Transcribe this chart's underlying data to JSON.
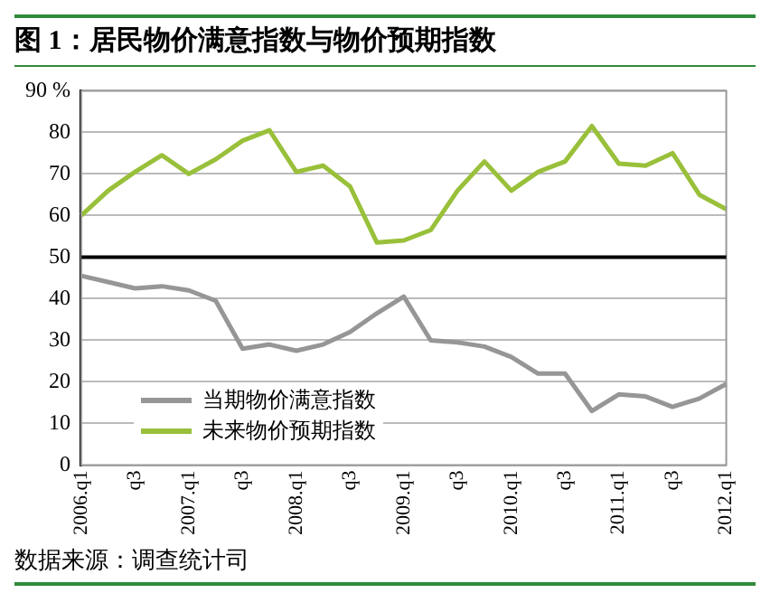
{
  "chart_data": {
    "type": "line",
    "title": "图 1：居民物价满意指数与物价预期指数",
    "categories": [
      "2006.q1",
      null,
      "q3",
      null,
      "2007.q1",
      null,
      "q3",
      null,
      "2008.q1",
      null,
      "q3",
      null,
      "2009.q1",
      null,
      "q3",
      null,
      "2010.q1",
      null,
      "q3",
      null,
      "2011.q1",
      null,
      "q3",
      null,
      "2012.q1"
    ],
    "series": [
      {
        "name": "当期物价满意指数",
        "color": "#969696",
        "values": [
          45.5,
          44,
          42.5,
          43,
          42,
          39.5,
          28,
          29,
          27.5,
          29,
          32,
          36.5,
          40.5,
          30,
          29.5,
          28.5,
          26,
          22,
          22,
          13,
          17,
          16.5,
          14,
          16,
          19.5
        ]
      },
      {
        "name": "未来物价预期指数",
        "color": "#99c03a",
        "values": [
          60,
          66,
          70.5,
          74.5,
          70,
          73.5,
          78,
          80.5,
          70.5,
          72,
          67,
          53.5,
          54,
          56.5,
          66,
          73,
          66,
          70.5,
          73,
          81.5,
          72.5,
          72,
          75,
          65,
          61.5
        ]
      }
    ],
    "ylim": [
      0,
      90
    ],
    "yticks": [
      0,
      10,
      20,
      30,
      40,
      50,
      60,
      70,
      80,
      {
        "value": 90,
        "label": "90 %"
      }
    ],
    "ref_lines": [
      {
        "axis": "y",
        "value": 50,
        "color": "#000000"
      }
    ],
    "grid": "y",
    "legend": "bottom left",
    "marker": "none",
    "line_style": "solid",
    "annotations": [
      "数据来源：调查统计司"
    ]
  }
}
